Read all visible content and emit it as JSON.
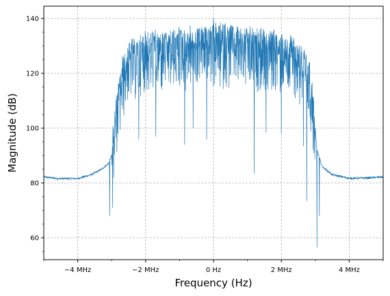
{
  "chart_data": {
    "type": "line",
    "title": "",
    "xlabel": "Frequency (Hz)",
    "ylabel": "Magnitude (dB)",
    "xlim": [
      -5.0,
      5.0
    ],
    "ylim": [
      52,
      144.5
    ],
    "x_unit": "MHz",
    "grid": true,
    "grid_style": "dashed",
    "line_color": "#1f77b4",
    "x_ticks": [
      {
        "value": -4,
        "label": "−4 MHz"
      },
      {
        "value": -2,
        "label": "−2 MHz"
      },
      {
        "value": 0,
        "label": "0 Hz"
      },
      {
        "value": 2,
        "label": "2 MHz"
      },
      {
        "value": 4,
        "label": "4 MHz"
      }
    ],
    "y_ticks": [
      {
        "value": 60,
        "label": "60"
      },
      {
        "value": 80,
        "label": "80"
      },
      {
        "value": 100,
        "label": "100"
      },
      {
        "value": 120,
        "label": "120"
      },
      {
        "value": 140,
        "label": "140"
      }
    ],
    "series": [
      {
        "envelope": [
          [
            -5.0,
            82.2
          ],
          [
            -4.6,
            81.6
          ],
          [
            -4.0,
            81.6
          ],
          [
            -3.6,
            83.0
          ],
          [
            -3.3,
            85.0
          ],
          [
            -3.1,
            87.0
          ],
          [
            -3.0,
            90.0
          ],
          [
            -2.9,
            100.0
          ],
          [
            -2.8,
            110.0
          ],
          [
            -2.7,
            118.0
          ],
          [
            -2.5,
            124.0
          ],
          [
            -2.0,
            127.5
          ],
          [
            -1.0,
            129.5
          ],
          [
            0.0,
            131.0
          ],
          [
            1.0,
            129.5
          ],
          [
            2.0,
            128.0
          ],
          [
            2.5,
            126.0
          ],
          [
            2.8,
            118.0
          ],
          [
            2.9,
            112.0
          ],
          [
            3.0,
            100.0
          ],
          [
            3.05,
            92.0
          ],
          [
            3.2,
            86.0
          ],
          [
            3.5,
            83.0
          ],
          [
            4.0,
            81.7
          ],
          [
            4.5,
            81.8
          ],
          [
            5.0,
            82.2
          ]
        ],
        "peaks": [
          [
            -3.06,
            68.0
          ],
          [
            -2.97,
            71.0
          ],
          [
            -2.2,
            96.0
          ],
          [
            -1.7,
            97.0
          ],
          [
            -0.85,
            94.0
          ],
          [
            -0.6,
            100.0
          ],
          [
            -0.2,
            96.0
          ],
          [
            0.0,
            140.0
          ],
          [
            1.2,
            83.5
          ],
          [
            1.55,
            98.5
          ],
          [
            2.0,
            98.0
          ],
          [
            2.65,
            93.5
          ],
          [
            2.75,
            73.5
          ],
          [
            3.05,
            56.5
          ],
          [
            3.12,
            68.0
          ]
        ]
      }
    ]
  }
}
